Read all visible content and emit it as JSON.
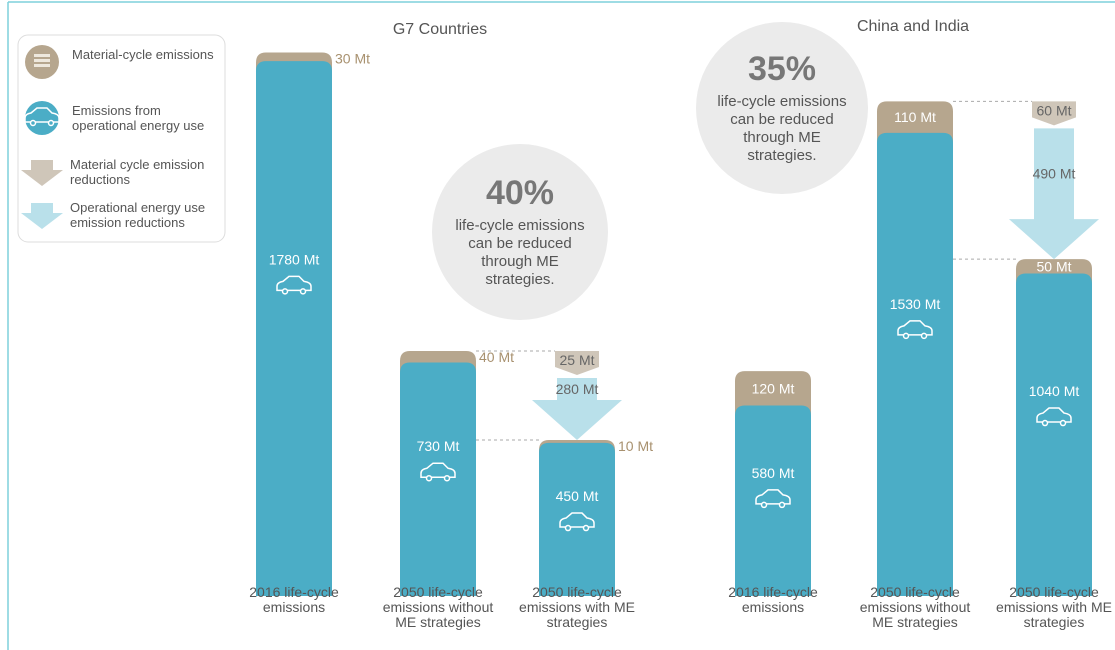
{
  "legend": [
    {
      "label": "Material-cycle emissions",
      "color": "#b6a68e"
    },
    {
      "label": "Emissions from operational energy use",
      "color": "#4badc6"
    },
    {
      "label": "Material cycle emission reductions",
      "color": "#cfc6b9"
    },
    {
      "label": "Operational energy use emission reductions",
      "color": "#b9e0ea"
    }
  ],
  "chart_data": [
    {
      "type": "bar",
      "stacked": true,
      "title": "G7 Countries",
      "categories": [
        "2016 life-cycle emissions",
        "2050 life-cycle emissions without ME strategies",
        "2050 life-cycle emissions with ME strategies"
      ],
      "series": [
        {
          "color": "#4badc6",
          "values": [
            1780,
            730,
            450
          ],
          "value_labels": [
            "1780 Mt",
            "730 Mt",
            "450 Mt"
          ]
        },
        {
          "color": "#b6a68e",
          "values": [
            30,
            40,
            10
          ],
          "value_labels": [
            "30 Mt",
            "40 Mt",
            "10 Mt"
          ]
        }
      ],
      "reductions": [
        {
          "color": "#cfc6b9",
          "value": 25,
          "value_label": "25 Mt"
        },
        {
          "color": "#b9e0ea",
          "value": 280,
          "value_label": "280 Mt"
        }
      ],
      "reduction_share": {
        "value": 40,
        "label": "40%"
      },
      "annotation": "life-cycle emissions can be reduced through ME strategies."
    },
    {
      "type": "bar",
      "stacked": true,
      "title": "China and India",
      "categories": [
        "2016 life-cycle emissions",
        "2050 life-cycle emissions without ME strategies",
        "2050 life-cycle emissions with ME strategies"
      ],
      "series": [
        {
          "color": "#4badc6",
          "values": [
            580,
            1530,
            1040
          ],
          "value_labels": [
            "580 Mt",
            "1530 Mt",
            "1040 Mt"
          ]
        },
        {
          "color": "#b6a68e",
          "values": [
            120,
            110,
            50
          ],
          "value_labels": [
            "120 Mt",
            "110 Mt",
            "50 Mt"
          ]
        }
      ],
      "reductions": [
        {
          "color": "#cfc6b9",
          "value": 60,
          "value_label": "60 Mt"
        },
        {
          "color": "#b9e0ea",
          "value": 490,
          "value_label": "490 Mt"
        }
      ],
      "reduction_share": {
        "value": 35,
        "label": "35%"
      },
      "annotation": "life-cycle emissions can be reduced through ME strategies."
    }
  ]
}
